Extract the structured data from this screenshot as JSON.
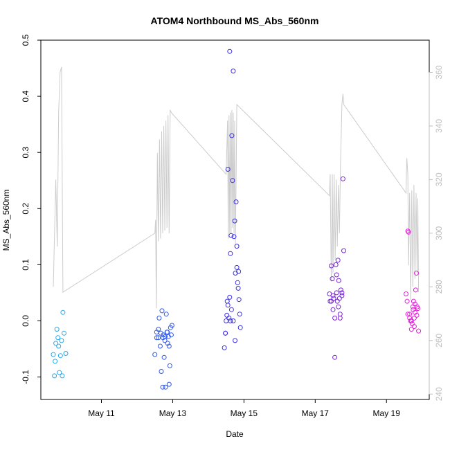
{
  "chart_data": {
    "type": "scatter",
    "title": "ATOM4 Northbound MS_Abs_560nm",
    "xlabel": "Date",
    "ylabel": "MS_Abs_560nm",
    "x_unit": "day of May",
    "xlim": [
      9.3,
      20.2
    ],
    "ylim": [
      -0.14,
      0.5
    ],
    "y_ticks": [
      -0.1,
      0.0,
      0.1,
      0.2,
      0.3,
      0.4,
      0.5
    ],
    "y_tick_labels": [
      "-0.1",
      "0.0",
      "0.1",
      "0.2",
      "0.3",
      "0.4",
      "0.5"
    ],
    "x_ticks": [
      11,
      13,
      15,
      17,
      19
    ],
    "x_tick_labels": [
      "May 11",
      "May 13",
      "May 15",
      "May 17",
      "May 19"
    ],
    "y2lim": [
      238,
      372
    ],
    "y2_ticks": [
      240,
      260,
      280,
      300,
      320,
      340,
      360
    ],
    "y2_tick_labels": [
      "240",
      "260",
      "280",
      "300",
      "320",
      "340",
      "360"
    ],
    "grid": false,
    "legend": "none",
    "series": [
      {
        "color": "#29a8e6",
        "points": [
          [
            9.65,
            -0.06
          ],
          [
            9.68,
            -0.098
          ],
          [
            9.7,
            -0.072
          ],
          [
            9.72,
            -0.04
          ],
          [
            9.75,
            -0.015
          ],
          [
            9.78,
            -0.03
          ],
          [
            9.8,
            -0.045
          ],
          [
            9.82,
            -0.092
          ],
          [
            9.85,
            -0.062
          ],
          [
            9.88,
            -0.035
          ],
          [
            9.9,
            -0.098
          ],
          [
            9.92,
            0.015
          ],
          [
            9.95,
            -0.022
          ],
          [
            10.0,
            -0.058
          ]
        ]
      },
      {
        "color": "#2f57e6",
        "points": [
          [
            12.5,
            -0.06
          ],
          [
            12.55,
            -0.02
          ],
          [
            12.6,
            -0.03
          ],
          [
            12.62,
            0.005
          ],
          [
            12.65,
            -0.045
          ],
          [
            12.68,
            -0.09
          ],
          [
            12.7,
            0.018
          ],
          [
            12.72,
            -0.118
          ],
          [
            12.74,
            -0.025
          ],
          [
            12.76,
            -0.065
          ],
          [
            12.78,
            -0.035
          ],
          [
            12.8,
            -0.118
          ],
          [
            12.82,
            0.012
          ],
          [
            12.84,
            -0.02
          ],
          [
            12.86,
            -0.04
          ],
          [
            12.88,
            -0.028
          ],
          [
            12.9,
            -0.113
          ],
          [
            12.92,
            -0.08
          ],
          [
            12.94,
            -0.012
          ],
          [
            12.96,
            -0.025
          ],
          [
            12.98,
            -0.008
          ],
          [
            12.55,
            -0.03
          ],
          [
            12.6,
            -0.015
          ],
          [
            12.67,
            -0.022
          ],
          [
            12.73,
            -0.03
          ],
          [
            12.79,
            -0.028
          ],
          [
            12.85,
            -0.02
          ],
          [
            12.9,
            -0.045
          ]
        ]
      },
      {
        "color": "#3a2ee6",
        "points": [
          [
            14.45,
            -0.048
          ],
          [
            14.48,
            -0.022
          ],
          [
            14.5,
            0.0
          ],
          [
            14.52,
            0.01
          ],
          [
            14.55,
            0.028
          ],
          [
            14.58,
            0.005
          ],
          [
            14.6,
            0.48
          ],
          [
            14.62,
            0.12
          ],
          [
            14.64,
            0.152
          ],
          [
            14.66,
            0.33
          ],
          [
            14.68,
            0.25
          ],
          [
            14.7,
            0.445
          ],
          [
            14.72,
            0.15
          ],
          [
            14.74,
            0.178
          ],
          [
            14.76,
            0.085
          ],
          [
            14.78,
            0.212
          ],
          [
            14.8,
            0.095
          ],
          [
            14.82,
            0.068
          ],
          [
            14.84,
            0.058
          ],
          [
            14.86,
            0.038
          ],
          [
            14.88,
            0.012
          ],
          [
            14.9,
            -0.012
          ],
          [
            14.55,
            0.27
          ],
          [
            14.6,
            0.042
          ],
          [
            14.65,
            0.02
          ],
          [
            14.7,
            0.0
          ],
          [
            14.75,
            -0.035
          ],
          [
            14.8,
            0.133
          ],
          [
            14.85,
            0.088
          ],
          [
            14.48,
            -0.022
          ],
          [
            14.53,
            0.035
          ],
          [
            14.62,
            0.0
          ]
        ]
      },
      {
        "color": "#7a23dc",
        "points": [
          [
            17.4,
            0.048
          ],
          [
            17.42,
            0.035
          ],
          [
            17.45,
            0.098
          ],
          [
            17.48,
            0.075
          ],
          [
            17.5,
            0.02
          ],
          [
            17.52,
            0.04
          ],
          [
            17.55,
            0.005
          ],
          [
            17.58,
            0.1
          ],
          [
            17.6,
            0.082
          ],
          [
            17.62,
            0.035
          ],
          [
            17.64,
            0.108
          ],
          [
            17.66,
            0.072
          ],
          [
            17.68,
            0.04
          ],
          [
            17.7,
            0.012
          ],
          [
            17.72,
            0.055
          ],
          [
            17.75,
            0.045
          ],
          [
            17.78,
            0.253
          ],
          [
            17.8,
            0.125
          ],
          [
            17.55,
            -0.065
          ],
          [
            17.6,
            0.05
          ],
          [
            17.65,
            0.025
          ],
          [
            17.7,
            0.005
          ],
          [
            17.45,
            0.035
          ],
          [
            17.5,
            0.045
          ],
          [
            17.75,
            0.05
          ]
        ]
      },
      {
        "color": "#e21fd8",
        "points": [
          [
            19.55,
            0.048
          ],
          [
            19.58,
            0.035
          ],
          [
            19.6,
            0.16
          ],
          [
            19.62,
            0.158
          ],
          [
            19.65,
            0.012
          ],
          [
            19.68,
            0.0
          ],
          [
            19.7,
            -0.015
          ],
          [
            19.72,
            -0.005
          ],
          [
            19.74,
            0.025
          ],
          [
            19.76,
            0.035
          ],
          [
            19.78,
            0.005
          ],
          [
            19.8,
            0.015
          ],
          [
            19.82,
            0.055
          ],
          [
            19.84,
            0.085
          ],
          [
            19.86,
            0.025
          ],
          [
            19.88,
            0.022
          ],
          [
            19.9,
            -0.018
          ],
          [
            19.6,
            0.012
          ],
          [
            19.7,
            0.0
          ],
          [
            19.75,
            0.02
          ],
          [
            19.8,
            0.03
          ],
          [
            19.85,
            0.01
          ],
          [
            19.65,
            0.005
          ],
          [
            19.78,
            -0.01
          ]
        ]
      }
    ],
    "secondary_line": {
      "color": "#cccccc",
      "points": [
        [
          9.65,
          280
        ],
        [
          9.72,
          320
        ],
        [
          9.76,
          295
        ],
        [
          9.8,
          345
        ],
        [
          9.84,
          360
        ],
        [
          9.88,
          362
        ],
        [
          9.92,
          278
        ],
        [
          12.5,
          300
        ],
        [
          12.52,
          305
        ],
        [
          12.54,
          272
        ],
        [
          12.57,
          330
        ],
        [
          12.6,
          297
        ],
        [
          12.63,
          335
        ],
        [
          12.66,
          298
        ],
        [
          12.69,
          338
        ],
        [
          12.72,
          300
        ],
        [
          12.75,
          340
        ],
        [
          12.78,
          301
        ],
        [
          12.81,
          342
        ],
        [
          12.84,
          302
        ],
        [
          12.87,
          344
        ],
        [
          12.9,
          300
        ],
        [
          12.93,
          346
        ],
        [
          12.96,
          345
        ],
        [
          14.5,
          322
        ],
        [
          14.52,
          332
        ],
        [
          14.54,
          342
        ],
        [
          14.56,
          298
        ],
        [
          14.58,
          344
        ],
        [
          14.6,
          300
        ],
        [
          14.62,
          345
        ],
        [
          14.64,
          300
        ],
        [
          14.66,
          346
        ],
        [
          14.68,
          302
        ],
        [
          14.7,
          345
        ],
        [
          14.72,
          300
        ],
        [
          14.74,
          342
        ],
        [
          14.76,
          296
        ],
        [
          14.78,
          318
        ],
        [
          14.8,
          348
        ],
        [
          17.4,
          314
        ],
        [
          17.42,
          322
        ],
        [
          17.45,
          282
        ],
        [
          17.48,
          322
        ],
        [
          17.5,
          285
        ],
        [
          17.53,
          322
        ],
        [
          17.56,
          290
        ],
        [
          17.59,
          320
        ],
        [
          17.62,
          295
        ],
        [
          17.65,
          318
        ],
        [
          17.68,
          300
        ],
        [
          17.71,
          325
        ],
        [
          17.75,
          348
        ],
        [
          17.78,
          352
        ],
        [
          17.8,
          348
        ],
        [
          19.55,
          315
        ],
        [
          19.57,
          328
        ],
        [
          19.6,
          322
        ],
        [
          19.62,
          288
        ],
        [
          19.65,
          315
        ],
        [
          19.68,
          275
        ],
        [
          19.71,
          316
        ],
        [
          19.74,
          280
        ],
        [
          19.77,
          318
        ],
        [
          19.8,
          283
        ],
        [
          19.83,
          315
        ],
        [
          19.86,
          285
        ],
        [
          19.88,
          313
        ],
        [
          19.9,
          278
        ]
      ]
    }
  }
}
